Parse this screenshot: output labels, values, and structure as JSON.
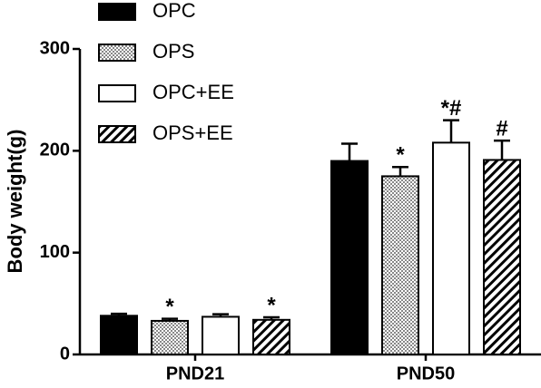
{
  "chart_data": {
    "type": "bar",
    "y_label": "Body weight(g)",
    "categories": [
      "PND21",
      "PND50"
    ],
    "ylim": [
      0,
      300
    ],
    "yticks": [
      0,
      100,
      200,
      300
    ],
    "legend": "top-left",
    "series": [
      {
        "name": "OPC",
        "color": "#000000",
        "pattern": "solid",
        "values": [
          38,
          190
        ],
        "errors": [
          2,
          17
        ],
        "annotations": [
          null,
          null
        ]
      },
      {
        "name": "OPS",
        "color": "#b0b0b0",
        "pattern": "checker",
        "values": [
          33,
          175
        ],
        "errors": [
          2,
          9
        ],
        "annotations": [
          "*",
          "*"
        ]
      },
      {
        "name": "OPC+EE",
        "color": "#ffffff",
        "pattern": "solid",
        "values": [
          37,
          208
        ],
        "errors": [
          2.5,
          22
        ],
        "annotations": [
          null,
          "*#"
        ]
      },
      {
        "name": "OPS+EE",
        "color": "#000000",
        "pattern": "hatch",
        "values": [
          34,
          191
        ],
        "errors": [
          2.5,
          19
        ],
        "annotations": [
          "*",
          "#"
        ]
      }
    ]
  }
}
